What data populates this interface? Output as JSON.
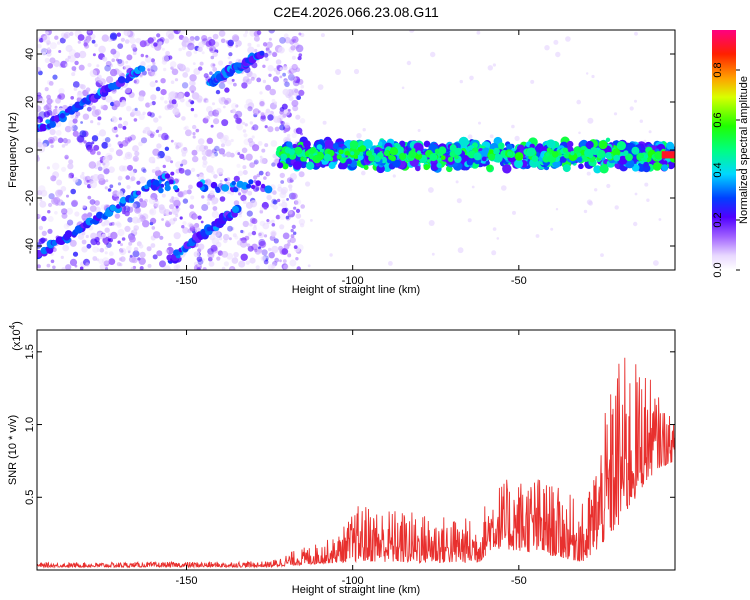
{
  "title": "C2E4.2026.066.23.08.G11",
  "chart_data": [
    {
      "type": "heatmap",
      "name": "spectrogram",
      "xlabel": "Height of straight line (km)",
      "ylabel": "Frequency (Hz)",
      "xlim": [
        -195,
        -3
      ],
      "ylim": [
        -50,
        50
      ],
      "x_ticks": [
        -150,
        -100,
        -50
      ],
      "y_ticks": [
        -40,
        -20,
        0,
        20,
        40
      ],
      "colorbar": {
        "label": "Normalized spectral amplitude",
        "range": [
          0,
          0.96
        ],
        "ticks": [
          0.0,
          0.2,
          0.4,
          0.6,
          0.8
        ]
      },
      "features": {
        "carrier_frequency_hz": -2,
        "carrier_start_km": -122,
        "diagonal_tracks": [
          {
            "x0": -195,
            "y0": 8,
            "x1": -163,
            "y1": 34
          },
          {
            "x0": -195,
            "y0": -44,
            "x1": -155,
            "y1": -10
          },
          {
            "x0": -155,
            "y0": -46,
            "x1": -135,
            "y1": -25
          },
          {
            "x0": -143,
            "y0": 28,
            "x1": -128,
            "y1": 40
          }
        ]
      }
    },
    {
      "type": "line",
      "name": "snr",
      "xlabel": "Height of straight line (km)",
      "ylabel": "SNR (10 * v/v)",
      "scale_label": "(x10",
      "scale_exponent": "4",
      "xlim": [
        -195,
        -3
      ],
      "ylim": [
        0,
        1.65
      ],
      "x_ticks": [
        -150,
        -100,
        -50
      ],
      "y_ticks": [
        0.5,
        1.0,
        1.5
      ],
      "y_tick_labels": [
        "0.5",
        "1.0",
        "1.5"
      ],
      "color": "#e8302e",
      "envelope": {
        "x": [
          -195,
          -125,
          -118,
          -105,
          -98,
          -80,
          -62,
          -58,
          -45,
          -30,
          -20,
          -12,
          -8,
          -3
        ],
        "base": [
          0.02,
          0.02,
          0.03,
          0.05,
          0.06,
          0.05,
          0.05,
          0.15,
          0.12,
          0.05,
          0.3,
          0.6,
          0.7,
          0.75
        ],
        "amplitude": [
          0.03,
          0.04,
          0.1,
          0.18,
          0.4,
          0.35,
          0.3,
          0.45,
          0.55,
          0.4,
          1.2,
          0.8,
          0.5,
          0.25
        ]
      }
    }
  ]
}
